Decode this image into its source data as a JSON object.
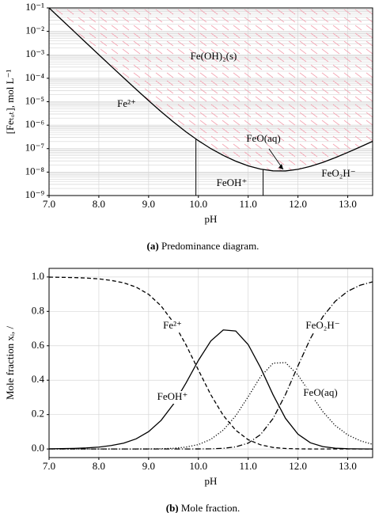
{
  "chart_data": [
    {
      "type": "line",
      "yscale": "log",
      "grid": true,
      "caption_label": "(a)",
      "caption": "Predominance diagram.",
      "xlabel": "pH",
      "ylabel": "[Feₜₒₜ], mol L⁻¹",
      "xlim": [
        7,
        13.5
      ],
      "ylim": [
        1e-09,
        0.1
      ],
      "xticks": [
        {
          "value": 7,
          "label": "7.0"
        },
        {
          "value": 8,
          "label": "8.0"
        },
        {
          "value": 9,
          "label": "9.0"
        },
        {
          "value": 10,
          "label": "10.0"
        },
        {
          "value": 11,
          "label": "11.0"
        },
        {
          "value": 12,
          "label": "12.0"
        },
        {
          "value": 13,
          "label": "13.0"
        }
      ],
      "yticks": [
        {
          "value": 1e-09,
          "label": "10⁻⁹"
        },
        {
          "value": 1e-08,
          "label": "10⁻⁸"
        },
        {
          "value": 1e-07,
          "label": "10⁻⁷"
        },
        {
          "value": 1e-06,
          "label": "10⁻⁶"
        },
        {
          "value": 1e-05,
          "label": "10⁻⁵"
        },
        {
          "value": 0.0001,
          "label": "10⁻⁴"
        },
        {
          "value": 0.001,
          "label": "10⁻³"
        },
        {
          "value": 0.01,
          "label": "10⁻²"
        },
        {
          "value": 0.1,
          "label": "10⁻¹"
        }
      ],
      "x": [
        7,
        7.25,
        7.5,
        7.75,
        8,
        8.25,
        8.5,
        8.75,
        9,
        9.25,
        9.5,
        9.75,
        10,
        10.25,
        10.5,
        10.75,
        11,
        11.25,
        11.5,
        11.75,
        12,
        12.25,
        12.5,
        12.75,
        13,
        13.25,
        13.5
      ],
      "series": [
        {
          "color": "#000000",
          "style": "solid",
          "hatch": "#f4a6b4",
          "values": [
            0.1,
            0.0317,
            0.01004,
            0.00318,
            0.00101,
            0.000323,
            0.000104,
            3.36e-05,
            1.11e-05,
            3.8e-06,
            1.36e-06,
            5.21e-07,
            2.18e-07,
            1e-07,
            5.13e-08,
            2.91e-08,
            1.85e-08,
            1.34e-08,
            1.13e-08,
            1.12e-08,
            1.31e-08,
            1.75e-08,
            2.59e-08,
            4.13e-08,
            6.88e-08,
            1.18e-07,
            2.05e-07
          ]
        }
      ],
      "boundaries_x": [
        9.95,
        11.3
      ],
      "annotations": [
        "Fe(OH)₂(s)",
        "Fe²⁺",
        "FeOH⁺",
        "FeO(aq)",
        "FeO₂H⁻"
      ]
    },
    {
      "type": "line",
      "grid": true,
      "caption_label": "(b)",
      "caption": "Mole fraction.",
      "xlabel": "pH",
      "ylabel": "Mole fraction xᵢ, /",
      "xlim": [
        7,
        13.5
      ],
      "ylim": [
        -0.05,
        1.05
      ],
      "xticks": [
        {
          "value": 7,
          "label": "7.0"
        },
        {
          "value": 8,
          "label": "8.0"
        },
        {
          "value": 9,
          "label": "9.0"
        },
        {
          "value": 10,
          "label": "10.0"
        },
        {
          "value": 11,
          "label": "11.0"
        },
        {
          "value": 12,
          "label": "12.0"
        },
        {
          "value": 13,
          "label": "13.0"
        }
      ],
      "yticks": [
        {
          "value": 0,
          "label": "0.0"
        },
        {
          "value": 0.2,
          "label": "0.2"
        },
        {
          "value": 0.4,
          "label": "0.4"
        },
        {
          "value": 0.6,
          "label": "0.6"
        },
        {
          "value": 0.8,
          "label": "0.8"
        },
        {
          "value": 1,
          "label": "1.0"
        }
      ],
      "x": [
        7,
        7.25,
        7.5,
        7.75,
        8,
        8.25,
        8.5,
        8.75,
        9,
        9.25,
        9.5,
        9.75,
        10,
        10.25,
        10.5,
        10.75,
        11,
        11.25,
        11.5,
        11.75,
        12,
        12.25,
        12.5,
        12.75,
        13,
        13.25,
        13.5
      ],
      "series": [
        {
          "name": "Fe²⁺",
          "color": "#000000",
          "style": "dashed",
          "values": [
            0.999,
            0.998,
            0.9965,
            0.9937,
            0.989,
            0.98,
            0.966,
            0.941,
            0.899,
            0.832,
            0.735,
            0.606,
            0.459,
            0.315,
            0.195,
            0.109,
            0.054,
            0.024,
            0.0089,
            0.0028,
            0.0008,
            0.0002,
            0,
            0,
            0,
            0,
            0
          ]
        },
        {
          "name": "FeOH⁺",
          "color": "#000000",
          "style": "solid",
          "values": [
            0.0011,
            0.002,
            0.0035,
            0.0063,
            0.011,
            0.02,
            0.034,
            0.059,
            0.101,
            0.166,
            0.261,
            0.383,
            0.515,
            0.628,
            0.692,
            0.686,
            0.607,
            0.472,
            0.315,
            0.178,
            0.086,
            0.036,
            0.0137,
            0.0048,
            0.0016,
            0.0005,
            0.0002
          ]
        },
        {
          "name": "FeO(aq)",
          "color": "#000000",
          "style": "dotted",
          "values": [
            0,
            0,
            0,
            0,
            0,
            0,
            0.0001,
            0.0002,
            0.0005,
            0.0015,
            0.0041,
            0.0108,
            0.0258,
            0.056,
            0.11,
            0.193,
            0.304,
            0.421,
            0.499,
            0.502,
            0.43,
            0.322,
            0.217,
            0.136,
            0.082,
            0.048,
            0.027
          ]
        },
        {
          "name": "FeO₂H⁻",
          "color": "#000000",
          "style": "dashdot",
          "values": [
            0,
            0,
            0,
            0,
            0,
            0,
            0,
            0,
            0,
            0,
            0,
            0.0001,
            0.0003,
            0.0011,
            0.0039,
            0.0122,
            0.034,
            0.084,
            0.177,
            0.317,
            0.483,
            0.642,
            0.769,
            0.859,
            0.917,
            0.952,
            0.972
          ]
        }
      ]
    }
  ]
}
